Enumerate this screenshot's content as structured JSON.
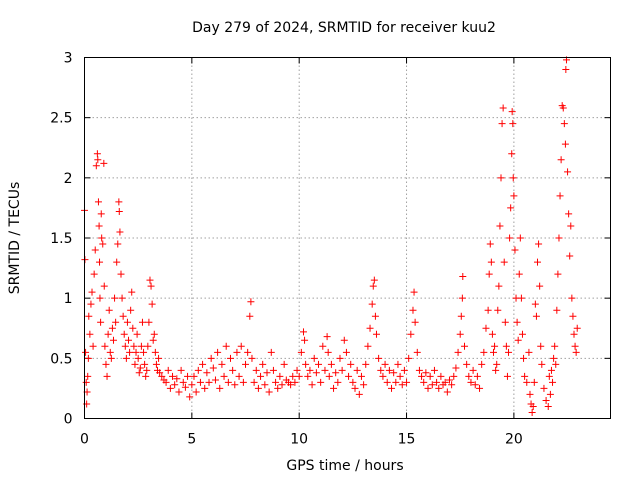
{
  "chart_data": {
    "type": "scatter",
    "title": "Day 279 of 2024, SRMTID for receiver kuu2",
    "xlabel": "GPS time / hours",
    "ylabel": "SRMTID / TECUs",
    "xlim": [
      0,
      24.5
    ],
    "ylim": [
      0,
      3
    ],
    "xticks": [
      0,
      5,
      10,
      15,
      20
    ],
    "yticks": [
      0,
      0.5,
      1,
      1.5,
      2,
      2.5,
      3
    ],
    "xtick_labels": [
      "0",
      "5",
      "10",
      "15",
      "20"
    ],
    "ytick_labels": [
      "0",
      "0.5",
      "1",
      "1.5",
      "2",
      "2.5",
      "3"
    ],
    "grid": true,
    "marker": "+",
    "series": [
      {
        "name": "SRMTID",
        "color": "#ff0000",
        "points": [
          [
            0.0,
            1.73
          ],
          [
            0.02,
            1.32
          ],
          [
            0.05,
            0.55
          ],
          [
            0.08,
            0.3
          ],
          [
            0.1,
            0.12
          ],
          [
            0.12,
            0.22
          ],
          [
            0.15,
            0.35
          ],
          [
            0.18,
            0.5
          ],
          [
            0.2,
            0.85
          ],
          [
            0.25,
            0.7
          ],
          [
            0.3,
            0.95
          ],
          [
            0.35,
            1.05
          ],
          [
            0.4,
            0.6
          ],
          [
            0.45,
            1.2
          ],
          [
            0.5,
            1.4
          ],
          [
            0.55,
            2.1
          ],
          [
            0.6,
            2.2
          ],
          [
            0.62,
            2.15
          ],
          [
            0.65,
            1.8
          ],
          [
            0.68,
            1.6
          ],
          [
            0.7,
            1.3
          ],
          [
            0.72,
            1.0
          ],
          [
            0.75,
            0.8
          ],
          [
            0.78,
            1.7
          ],
          [
            0.8,
            1.5
          ],
          [
            0.85,
            1.45
          ],
          [
            0.9,
            2.12
          ],
          [
            0.92,
            1.1
          ],
          [
            0.95,
            0.6
          ],
          [
            1.0,
            0.45
          ],
          [
            1.05,
            0.35
          ],
          [
            1.1,
            0.7
          ],
          [
            1.15,
            0.9
          ],
          [
            1.2,
            0.55
          ],
          [
            1.25,
            0.5
          ],
          [
            1.3,
            0.75
          ],
          [
            1.35,
            0.65
          ],
          [
            1.4,
            1.0
          ],
          [
            1.45,
            0.8
          ],
          [
            1.5,
            1.3
          ],
          [
            1.55,
            1.45
          ],
          [
            1.6,
            1.8
          ],
          [
            1.62,
            1.72
          ],
          [
            1.65,
            1.55
          ],
          [
            1.7,
            1.2
          ],
          [
            1.75,
            1.0
          ],
          [
            1.8,
            0.85
          ],
          [
            1.85,
            0.7
          ],
          [
            1.9,
            0.6
          ],
          [
            1.95,
            0.5
          ],
          [
            2.0,
            0.8
          ],
          [
            2.05,
            0.65
          ],
          [
            2.1,
            0.55
          ],
          [
            2.15,
            0.9
          ],
          [
            2.2,
            1.05
          ],
          [
            2.25,
            0.75
          ],
          [
            2.3,
            0.6
          ],
          [
            2.35,
            0.45
          ],
          [
            2.4,
            0.55
          ],
          [
            2.45,
            0.7
          ],
          [
            2.5,
            0.5
          ],
          [
            2.55,
            0.38
          ],
          [
            2.6,
            0.42
          ],
          [
            2.65,
            0.6
          ],
          [
            2.7,
            0.8
          ],
          [
            2.75,
            0.55
          ],
          [
            2.8,
            0.45
          ],
          [
            2.85,
            0.35
          ],
          [
            2.9,
            0.4
          ],
          [
            2.95,
            0.6
          ],
          [
            3.0,
            0.8
          ],
          [
            3.05,
            1.15
          ],
          [
            3.1,
            1.1
          ],
          [
            3.15,
            0.95
          ],
          [
            3.2,
            0.65
          ],
          [
            3.25,
            0.7
          ],
          [
            3.3,
            0.55
          ],
          [
            3.35,
            0.45
          ],
          [
            3.4,
            0.4
          ],
          [
            3.45,
            0.5
          ],
          [
            3.5,
            0.38
          ],
          [
            3.6,
            0.35
          ],
          [
            3.7,
            0.32
          ],
          [
            3.8,
            0.3
          ],
          [
            3.9,
            0.4
          ],
          [
            4.0,
            0.25
          ],
          [
            4.1,
            0.35
          ],
          [
            4.2,
            0.28
          ],
          [
            4.3,
            0.33
          ],
          [
            4.4,
            0.22
          ],
          [
            4.5,
            0.4
          ],
          [
            4.6,
            0.3
          ],
          [
            4.7,
            0.26
          ],
          [
            4.8,
            0.35
          ],
          [
            4.9,
            0.18
          ],
          [
            5.0,
            0.28
          ],
          [
            5.1,
            0.35
          ],
          [
            5.2,
            0.22
          ],
          [
            5.3,
            0.4
          ],
          [
            5.4,
            0.3
          ],
          [
            5.5,
            0.45
          ],
          [
            5.6,
            0.25
          ],
          [
            5.7,
            0.38
          ],
          [
            5.8,
            0.3
          ],
          [
            5.9,
            0.5
          ],
          [
            6.0,
            0.42
          ],
          [
            6.1,
            0.32
          ],
          [
            6.2,
            0.55
          ],
          [
            6.3,
            0.25
          ],
          [
            6.4,
            0.45
          ],
          [
            6.5,
            0.35
          ],
          [
            6.6,
            0.6
          ],
          [
            6.7,
            0.3
          ],
          [
            6.8,
            0.5
          ],
          [
            6.9,
            0.4
          ],
          [
            7.0,
            0.28
          ],
          [
            7.1,
            0.55
          ],
          [
            7.2,
            0.35
          ],
          [
            7.3,
            0.6
          ],
          [
            7.4,
            0.3
          ],
          [
            7.5,
            0.45
          ],
          [
            7.6,
            0.55
          ],
          [
            7.7,
            0.85
          ],
          [
            7.75,
            0.97
          ],
          [
            7.8,
            0.5
          ],
          [
            7.9,
            0.3
          ],
          [
            8.0,
            0.4
          ],
          [
            8.1,
            0.25
          ],
          [
            8.2,
            0.35
          ],
          [
            8.3,
            0.45
          ],
          [
            8.4,
            0.28
          ],
          [
            8.5,
            0.38
          ],
          [
            8.6,
            0.22
          ],
          [
            8.7,
            0.55
          ],
          [
            8.8,
            0.4
          ],
          [
            8.9,
            0.3
          ],
          [
            9.0,
            0.25
          ],
          [
            9.1,
            0.35
          ],
          [
            9.2,
            0.28
          ],
          [
            9.3,
            0.45
          ],
          [
            9.4,
            0.32
          ],
          [
            9.5,
            0.3
          ],
          [
            9.6,
            0.28
          ],
          [
            9.7,
            0.35
          ],
          [
            9.8,
            0.3
          ],
          [
            9.9,
            0.4
          ],
          [
            10.0,
            0.35
          ],
          [
            10.1,
            0.55
          ],
          [
            10.2,
            0.72
          ],
          [
            10.25,
            0.65
          ],
          [
            10.3,
            0.45
          ],
          [
            10.4,
            0.35
          ],
          [
            10.5,
            0.4
          ],
          [
            10.6,
            0.28
          ],
          [
            10.7,
            0.5
          ],
          [
            10.8,
            0.38
          ],
          [
            10.9,
            0.45
          ],
          [
            11.0,
            0.3
          ],
          [
            11.1,
            0.6
          ],
          [
            11.2,
            0.4
          ],
          [
            11.3,
            0.68
          ],
          [
            11.35,
            0.55
          ],
          [
            11.4,
            0.35
          ],
          [
            11.5,
            0.45
          ],
          [
            11.6,
            0.25
          ],
          [
            11.7,
            0.38
          ],
          [
            11.8,
            0.3
          ],
          [
            11.9,
            0.5
          ],
          [
            12.0,
            0.4
          ],
          [
            12.1,
            0.65
          ],
          [
            12.2,
            0.55
          ],
          [
            12.3,
            0.35
          ],
          [
            12.4,
            0.45
          ],
          [
            12.5,
            0.3
          ],
          [
            12.6,
            0.25
          ],
          [
            12.7,
            0.4
          ],
          [
            12.8,
            0.2
          ],
          [
            12.9,
            0.35
          ],
          [
            13.0,
            0.28
          ],
          [
            13.1,
            0.45
          ],
          [
            13.2,
            0.6
          ],
          [
            13.3,
            0.75
          ],
          [
            13.4,
            0.95
          ],
          [
            13.45,
            1.1
          ],
          [
            13.5,
            1.15
          ],
          [
            13.55,
            0.85
          ],
          [
            13.6,
            0.7
          ],
          [
            13.7,
            0.5
          ],
          [
            13.8,
            0.4
          ],
          [
            13.9,
            0.35
          ],
          [
            14.0,
            0.45
          ],
          [
            14.1,
            0.3
          ],
          [
            14.2,
            0.4
          ],
          [
            14.3,
            0.25
          ],
          [
            14.4,
            0.38
          ],
          [
            14.5,
            0.3
          ],
          [
            14.6,
            0.45
          ],
          [
            14.7,
            0.35
          ],
          [
            14.8,
            0.28
          ],
          [
            14.9,
            0.4
          ],
          [
            15.0,
            0.3
          ],
          [
            15.1,
            0.5
          ],
          [
            15.2,
            0.7
          ],
          [
            15.3,
            0.9
          ],
          [
            15.35,
            1.05
          ],
          [
            15.4,
            0.8
          ],
          [
            15.5,
            0.55
          ],
          [
            15.6,
            0.4
          ],
          [
            15.7,
            0.35
          ],
          [
            15.8,
            0.3
          ],
          [
            15.9,
            0.38
          ],
          [
            16.0,
            0.25
          ],
          [
            16.1,
            0.35
          ],
          [
            16.2,
            0.28
          ],
          [
            16.3,
            0.4
          ],
          [
            16.4,
            0.3
          ],
          [
            16.5,
            0.25
          ],
          [
            16.6,
            0.35
          ],
          [
            16.7,
            0.28
          ],
          [
            16.8,
            0.3
          ],
          [
            16.9,
            0.22
          ],
          [
            17.0,
            0.32
          ],
          [
            17.1,
            0.28
          ],
          [
            17.2,
            0.35
          ],
          [
            17.3,
            0.42
          ],
          [
            17.4,
            0.55
          ],
          [
            17.5,
            0.7
          ],
          [
            17.55,
            0.85
          ],
          [
            17.6,
            1.0
          ],
          [
            17.62,
            1.18
          ],
          [
            17.7,
            0.6
          ],
          [
            17.8,
            0.45
          ],
          [
            17.9,
            0.35
          ],
          [
            18.0,
            0.3
          ],
          [
            18.1,
            0.4
          ],
          [
            18.2,
            0.28
          ],
          [
            18.3,
            0.35
          ],
          [
            18.4,
            0.25
          ],
          [
            18.5,
            0.45
          ],
          [
            18.6,
            0.55
          ],
          [
            18.7,
            0.75
          ],
          [
            18.8,
            0.9
          ],
          [
            18.85,
            1.2
          ],
          [
            18.9,
            1.45
          ],
          [
            18.95,
            1.3
          ],
          [
            19.0,
            0.7
          ],
          [
            19.05,
            0.55
          ],
          [
            19.1,
            0.6
          ],
          [
            19.15,
            0.4
          ],
          [
            19.2,
            0.45
          ],
          [
            19.25,
            0.9
          ],
          [
            19.3,
            1.1
          ],
          [
            19.35,
            1.6
          ],
          [
            19.4,
            2.0
          ],
          [
            19.45,
            2.45
          ],
          [
            19.5,
            2.58
          ],
          [
            19.55,
            1.3
          ],
          [
            19.6,
            0.8
          ],
          [
            19.65,
            0.6
          ],
          [
            19.7,
            0.35
          ],
          [
            19.75,
            0.55
          ],
          [
            19.8,
            1.5
          ],
          [
            19.85,
            1.75
          ],
          [
            19.9,
            2.2
          ],
          [
            19.92,
            2.55
          ],
          [
            19.95,
            2.45
          ],
          [
            19.97,
            2.0
          ],
          [
            20.0,
            1.85
          ],
          [
            20.05,
            1.4
          ],
          [
            20.1,
            1.0
          ],
          [
            20.15,
            0.8
          ],
          [
            20.2,
            0.65
          ],
          [
            20.25,
            1.2
          ],
          [
            20.3,
            1.5
          ],
          [
            20.35,
            1.0
          ],
          [
            20.4,
            0.7
          ],
          [
            20.45,
            0.5
          ],
          [
            20.5,
            0.35
          ],
          [
            20.6,
            0.3
          ],
          [
            20.7,
            0.55
          ],
          [
            20.75,
            0.2
          ],
          [
            20.8,
            0.12
          ],
          [
            20.85,
            0.05
          ],
          [
            20.9,
            0.1
          ],
          [
            20.95,
            0.3
          ],
          [
            21.0,
            0.95
          ],
          [
            21.05,
            0.85
          ],
          [
            21.1,
            1.3
          ],
          [
            21.15,
            1.45
          ],
          [
            21.2,
            1.1
          ],
          [
            21.25,
            0.6
          ],
          [
            21.3,
            0.45
          ],
          [
            21.4,
            0.25
          ],
          [
            21.5,
            0.15
          ],
          [
            21.6,
            0.1
          ],
          [
            21.65,
            0.35
          ],
          [
            21.7,
            0.2
          ],
          [
            21.75,
            0.4
          ],
          [
            21.8,
            0.3
          ],
          [
            21.85,
            0.5
          ],
          [
            21.9,
            0.6
          ],
          [
            21.95,
            0.45
          ],
          [
            22.0,
            0.9
          ],
          [
            22.05,
            1.2
          ],
          [
            22.1,
            1.5
          ],
          [
            22.15,
            1.85
          ],
          [
            22.2,
            2.15
          ],
          [
            22.25,
            2.6
          ],
          [
            22.3,
            2.58
          ],
          [
            22.35,
            2.45
          ],
          [
            22.4,
            2.28
          ],
          [
            22.42,
            2.9
          ],
          [
            22.45,
            2.98
          ],
          [
            22.5,
            2.05
          ],
          [
            22.55,
            1.7
          ],
          [
            22.6,
            1.35
          ],
          [
            22.65,
            1.6
          ],
          [
            22.7,
            1.0
          ],
          [
            22.75,
            0.85
          ],
          [
            22.8,
            0.7
          ],
          [
            22.85,
            0.6
          ],
          [
            22.9,
            0.55
          ],
          [
            22.95,
            0.75
          ]
        ]
      }
    ]
  }
}
